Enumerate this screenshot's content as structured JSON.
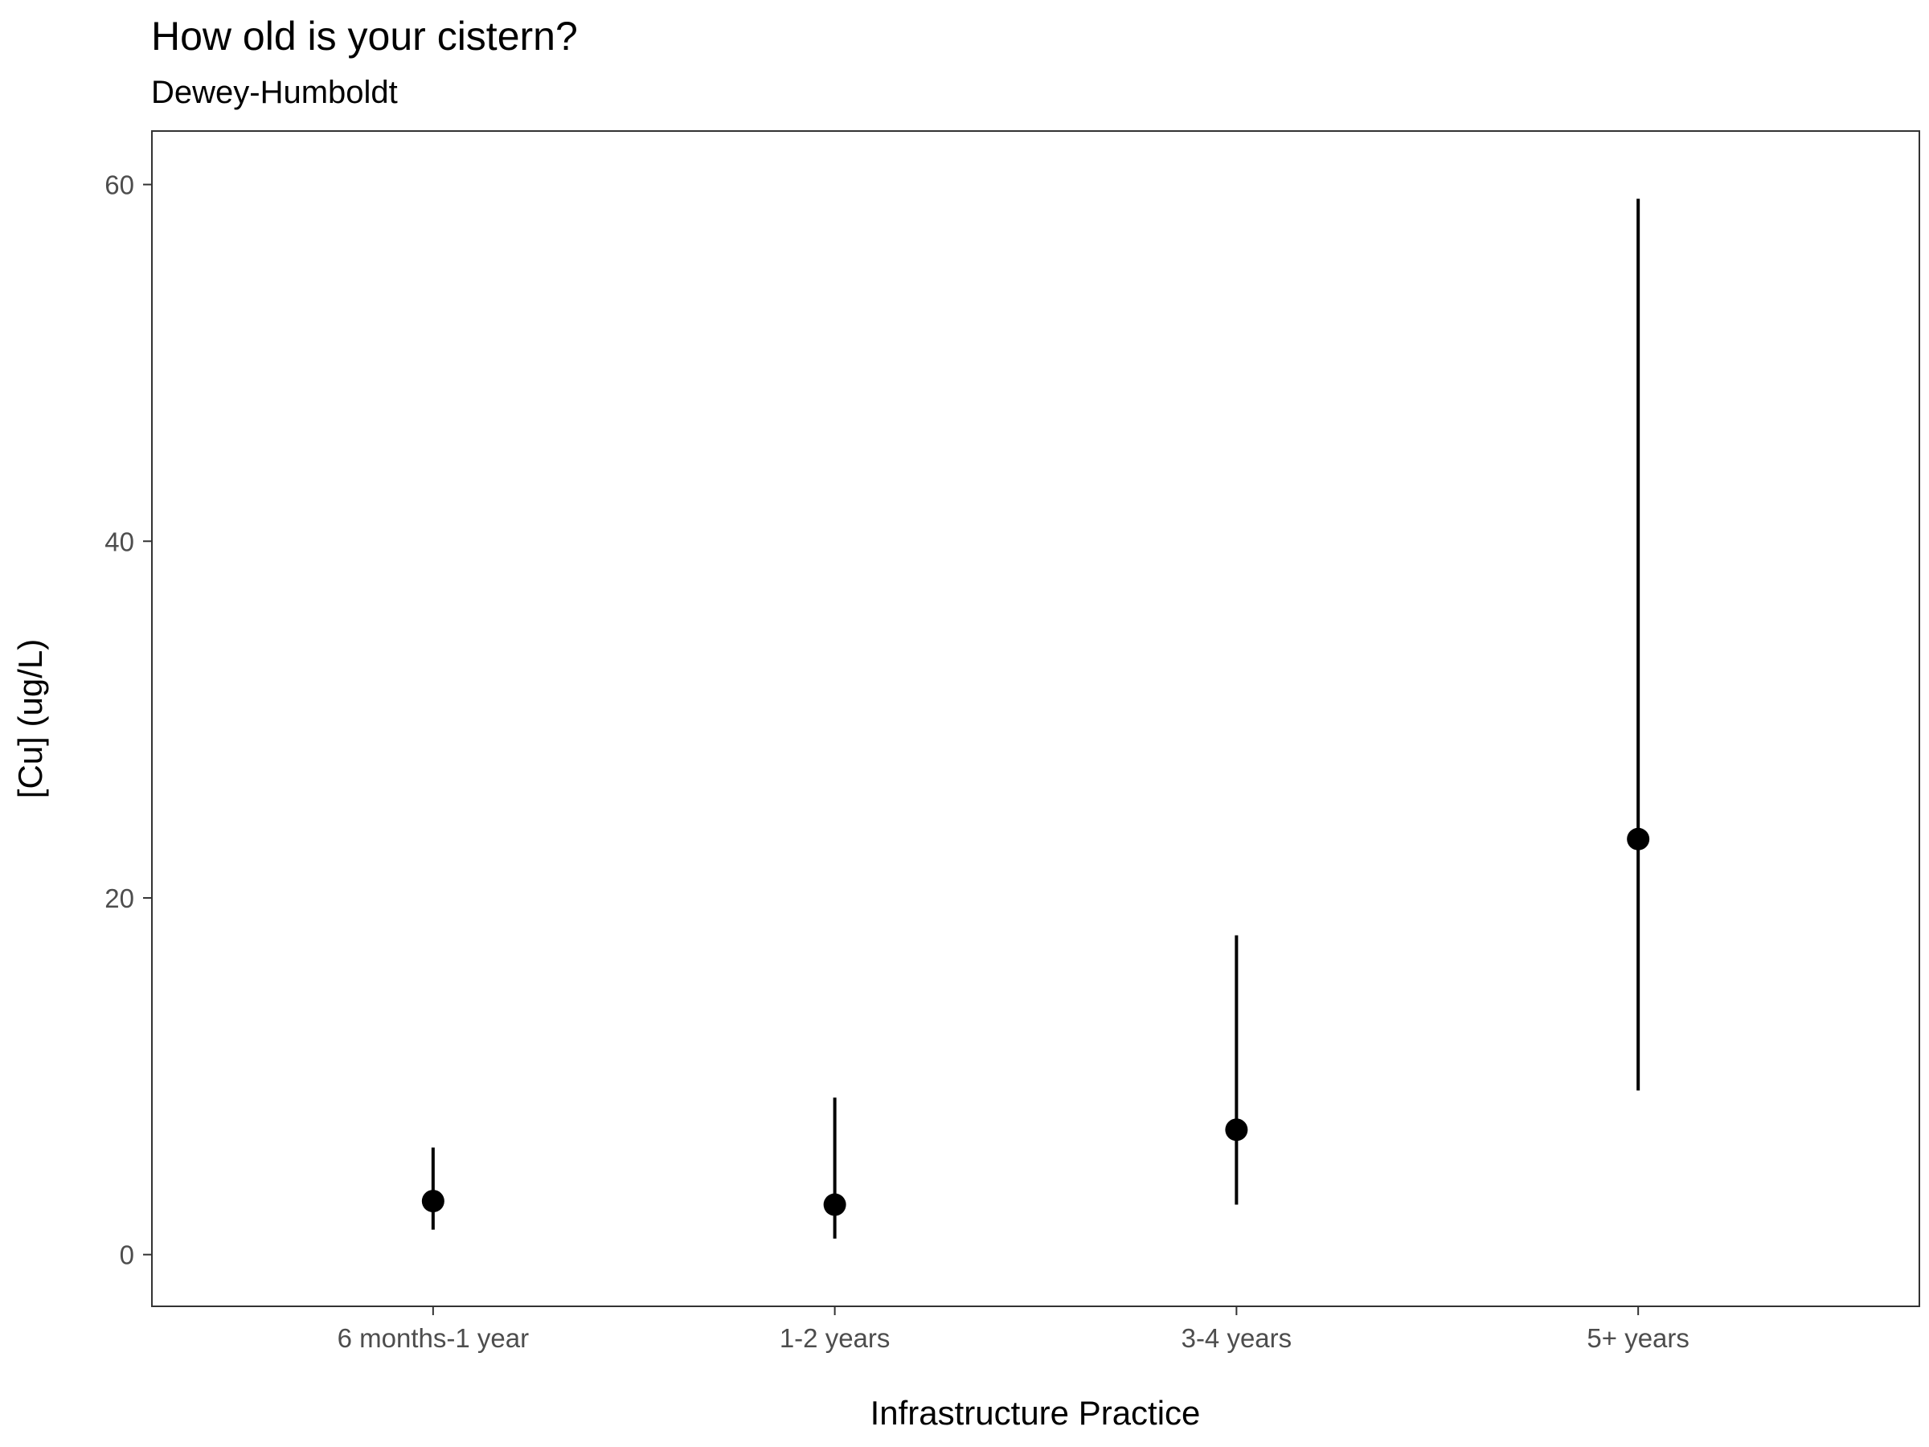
{
  "chart_data": {
    "type": "scatter",
    "title": "How old is your cistern?",
    "subtitle": "Dewey-Humboldt",
    "xlabel": "Infrastructure Practice",
    "ylabel": "[Cu] (ug/L)",
    "categories": [
      "6 months-1 year",
      "1-2 years",
      "3-4 years",
      "5+ years"
    ],
    "values": [
      3.0,
      2.8,
      7.0,
      23.3
    ],
    "error_low": [
      1.4,
      0.9,
      2.8,
      9.2
    ],
    "error_high": [
      6.0,
      8.8,
      17.9,
      59.2
    ],
    "ylim": [
      -2.9,
      63
    ],
    "yticks": [
      0,
      20,
      40,
      60
    ],
    "grid": false,
    "legend": "none",
    "colors": {
      "points": "#000000",
      "errorbars": "#000000",
      "panel_border": "#333333",
      "tick_text": "#4d4d4d"
    }
  }
}
